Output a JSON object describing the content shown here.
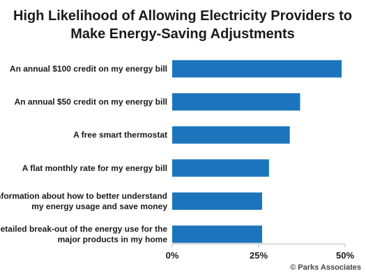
{
  "chart_data": {
    "type": "bar",
    "orientation": "horizontal",
    "title_lines": [
      "High Likelihood of Allowing Electricity Providers to",
      "Make Energy-Saving Adjustments"
    ],
    "categories": [
      [
        "An annual $100 credit on my energy bill"
      ],
      [
        "An annual $50 credit on my energy bill"
      ],
      [
        "A free smart thermostat"
      ],
      [
        "A flat monthly rate for my energy bill"
      ],
      [
        "Information about how to better understand",
        "my energy usage and save money"
      ],
      [
        "A detailed break-out of the energy use for the",
        "major products in my home"
      ]
    ],
    "values": [
      49,
      37,
      34,
      28,
      26,
      26
    ],
    "xlim": [
      0,
      50
    ],
    "ticks": [
      0,
      25,
      50
    ],
    "tick_labels": [
      "0%",
      "25%",
      "50%"
    ],
    "bar_color": "#1c75bc",
    "grid": false,
    "source": "© Parks Associates"
  }
}
